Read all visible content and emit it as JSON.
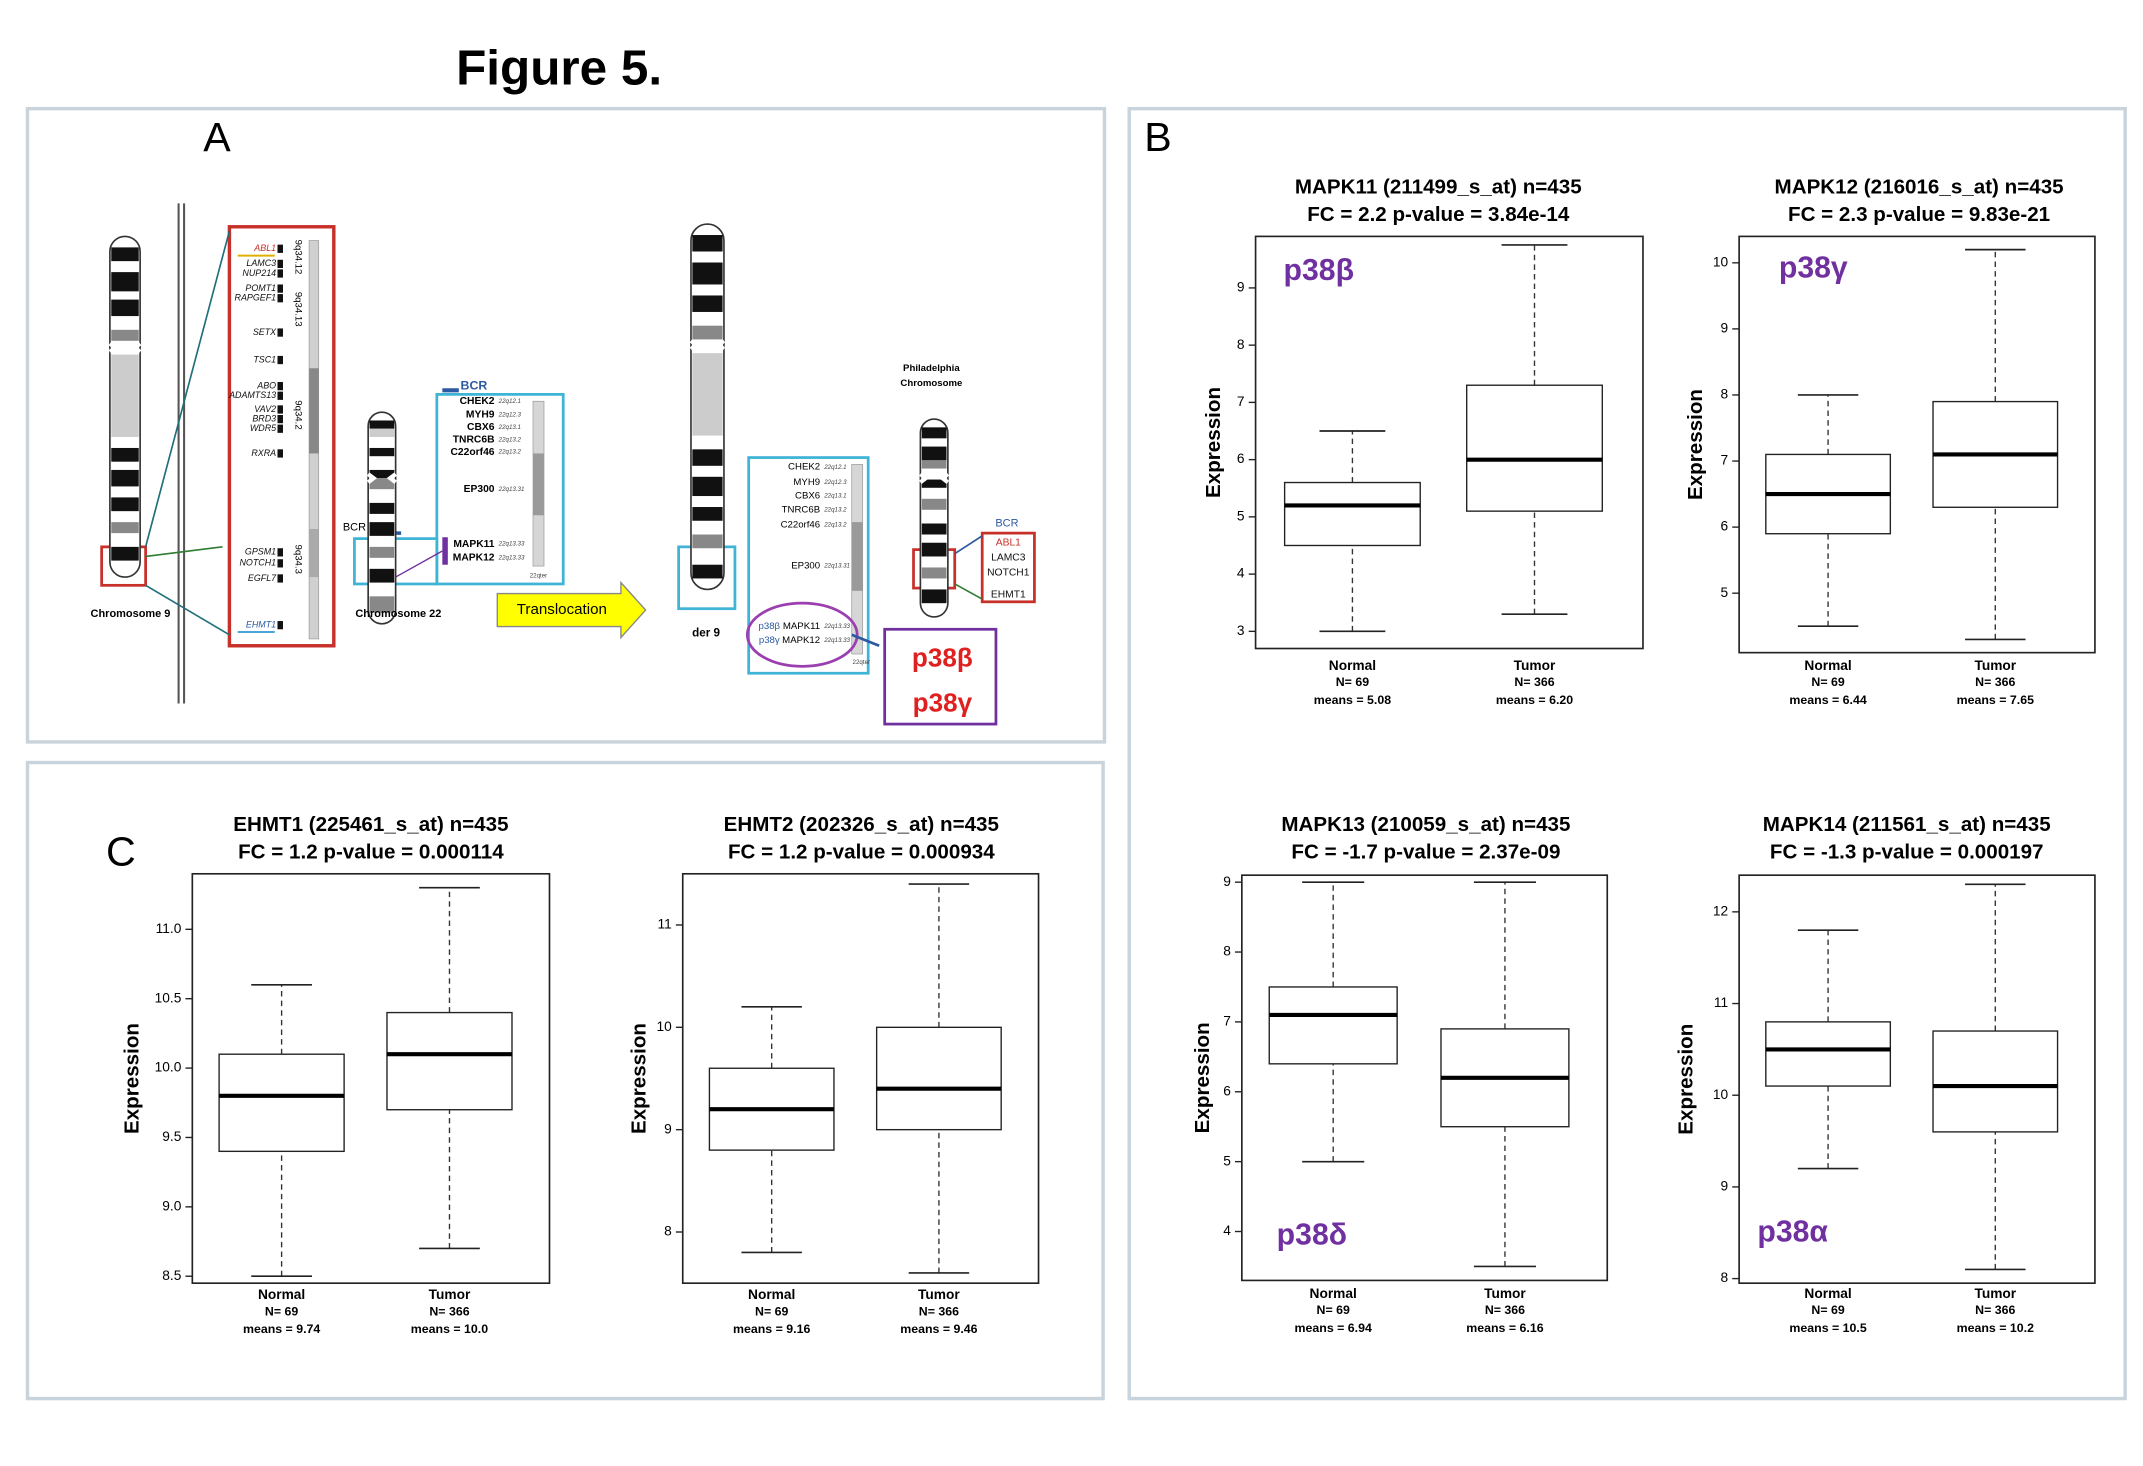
{
  "figure_title": "Figure 5.",
  "panel_a": {
    "label": "A",
    "chr9_label": "Chromosome 9",
    "chr9_genes": [
      "ABL1",
      "LAMC3",
      "NUP214",
      "POMT1",
      "RAPGEF1",
      "SETX",
      "TSC1",
      "ABO",
      "ADAMTS13",
      "VAV2",
      "BRD3",
      "WDR5",
      "RXRA",
      "GPSM1",
      "NOTCH1",
      "EGFL7",
      "EHMT1"
    ],
    "chr9_bands": [
      "9q34.12",
      "9q34.13",
      "9q34.2",
      "9q34.3"
    ],
    "chr22_label": "Chromosome 22",
    "bcr_label": "BCR",
    "chr22_genes": [
      "CHEK2",
      "MYH9",
      "CBX6",
      "TNRC6B",
      "C22orf46",
      "EP300",
      "MAPK11",
      "MAPK12"
    ],
    "chr22_bands": [
      "22q12.1",
      "22q12.3",
      "22q13.1",
      "22q13.2",
      "22q13.2",
      "22q13.31",
      "22q13.33",
      "22q13.33"
    ],
    "qter_label": "22qter",
    "arrow_label": "Translocation",
    "der9_label": "der 9",
    "der9_isoforms": [
      "p38β",
      "p38γ"
    ],
    "ph_label": [
      "Philadelphia",
      "Chromosome"
    ],
    "ph_genes": [
      "ABL1",
      "LAMC3",
      "NOTCH1",
      "EHMT1"
    ],
    "callout": [
      "p38β",
      "p38γ"
    ]
  },
  "panel_b": {
    "label": "B"
  },
  "panel_c": {
    "label": "C"
  },
  "chart_data": [
    {
      "type": "box",
      "title": [
        "MAPK11 (211499_s_at) n=435",
        "FC = 2.2 p-value = 3.84e-14"
      ],
      "isoform": "p38β",
      "ylabel": "Expression",
      "categories": [
        "Normal",
        "Tumor"
      ],
      "n_labels": [
        "N= 69",
        "N= 366"
      ],
      "means_labels": [
        "means = 5.08",
        "means = 6.20"
      ],
      "boxes": [
        {
          "whislo": 3.0,
          "q1": 4.5,
          "med": 5.2,
          "q3": 5.6,
          "whishi": 6.5
        },
        {
          "whislo": 3.3,
          "q1": 5.1,
          "med": 6.0,
          "q3": 7.3,
          "whishi": 9.75
        }
      ],
      "ylim": [
        2.7,
        9.9
      ],
      "yticks": [
        3,
        4,
        5,
        6,
        7,
        8,
        9
      ]
    },
    {
      "type": "box",
      "title": [
        "MAPK12 (216016_s_at) n=435",
        "FC = 2.3 p-value = 9.83e-21"
      ],
      "isoform": "p38γ",
      "ylabel": "Expression",
      "categories": [
        "Normal",
        "Tumor"
      ],
      "n_labels": [
        "N= 69",
        "N= 366"
      ],
      "means_labels": [
        "means = 6.44",
        "means = 7.65"
      ],
      "boxes": [
        {
          "whislo": 4.5,
          "q1": 5.9,
          "med": 6.5,
          "q3": 7.1,
          "whishi": 8.0
        },
        {
          "whislo": 4.3,
          "q1": 6.3,
          "med": 7.1,
          "q3": 7.9,
          "whishi": 10.2
        }
      ],
      "ylim": [
        4.1,
        10.4
      ],
      "yticks": [
        5,
        6,
        7,
        8,
        9,
        10
      ]
    },
    {
      "type": "box",
      "title": [
        "MAPK13 (210059_s_at) n=435",
        "FC = -1.7 p-value = 2.37e-09"
      ],
      "isoform": "p38δ",
      "ylabel": "Expression",
      "categories": [
        "Normal",
        "Tumor"
      ],
      "n_labels": [
        "N= 69",
        "N= 366"
      ],
      "means_labels": [
        "means = 6.94",
        "means = 6.16"
      ],
      "boxes": [
        {
          "whislo": 5.0,
          "q1": 6.4,
          "med": 7.1,
          "q3": 7.5,
          "whishi": 9.0
        },
        {
          "whislo": 3.5,
          "q1": 5.5,
          "med": 6.2,
          "q3": 6.9,
          "whishi": 9.0
        }
      ],
      "ylim": [
        3.3,
        9.1
      ],
      "yticks": [
        4,
        5,
        6,
        7,
        8,
        9
      ]
    },
    {
      "type": "box",
      "title": [
        "MAPK14 (211561_s_at) n=435",
        "FC = -1.3 p-value = 0.000197"
      ],
      "isoform": "p38α",
      "ylabel": "Expression",
      "categories": [
        "Normal",
        "Tumor"
      ],
      "n_labels": [
        "N= 69",
        "N= 366"
      ],
      "means_labels": [
        "means = 10.5",
        "means = 10.2"
      ],
      "boxes": [
        {
          "whislo": 9.2,
          "q1": 10.1,
          "med": 10.5,
          "q3": 10.8,
          "whishi": 11.8
        },
        {
          "whislo": 8.1,
          "q1": 9.6,
          "med": 10.1,
          "q3": 10.7,
          "whishi": 12.3
        }
      ],
      "ylim": [
        7.95,
        12.4
      ],
      "yticks": [
        8,
        9,
        10,
        11,
        12
      ]
    },
    {
      "type": "box",
      "title": [
        "EHMT1 (225461_s_at) n=435",
        "FC = 1.2 p-value = 0.000114"
      ],
      "ylabel": "Expression",
      "categories": [
        "Normal",
        "Tumor"
      ],
      "n_labels": [
        "N= 69",
        "N= 366"
      ],
      "means_labels": [
        "means = 9.74",
        "means = 10.0"
      ],
      "boxes": [
        {
          "whislo": 8.5,
          "q1": 9.4,
          "med": 9.8,
          "q3": 10.1,
          "whishi": 10.6
        },
        {
          "whislo": 8.7,
          "q1": 9.7,
          "med": 10.1,
          "q3": 10.4,
          "whishi": 11.3
        }
      ],
      "ylim": [
        8.45,
        11.4
      ],
      "yticks": [
        8.5,
        {
          "value": 9,
          "label": "9.0"
        },
        9.5,
        {
          "value": 10,
          "label": "10.0"
        },
        10.5,
        {
          "value": 11,
          "label": "11.0"
        }
      ]
    },
    {
      "type": "box",
      "title": [
        "EHMT2 (202326_s_at) n=435",
        "FC = 1.2 p-value = 0.000934"
      ],
      "ylabel": "Expression",
      "categories": [
        "Normal",
        "Tumor"
      ],
      "n_labels": [
        "N= 69",
        "N= 366"
      ],
      "means_labels": [
        "means = 9.16",
        "means = 9.46"
      ],
      "boxes": [
        {
          "whislo": 7.8,
          "q1": 8.8,
          "med": 9.2,
          "q3": 9.6,
          "whishi": 10.2
        },
        {
          "whislo": 7.6,
          "q1": 9.0,
          "med": 9.4,
          "q3": 10.0,
          "whishi": 11.4
        }
      ],
      "ylim": [
        7.5,
        11.5
      ],
      "yticks": [
        8,
        9,
        10,
        11
      ]
    }
  ]
}
